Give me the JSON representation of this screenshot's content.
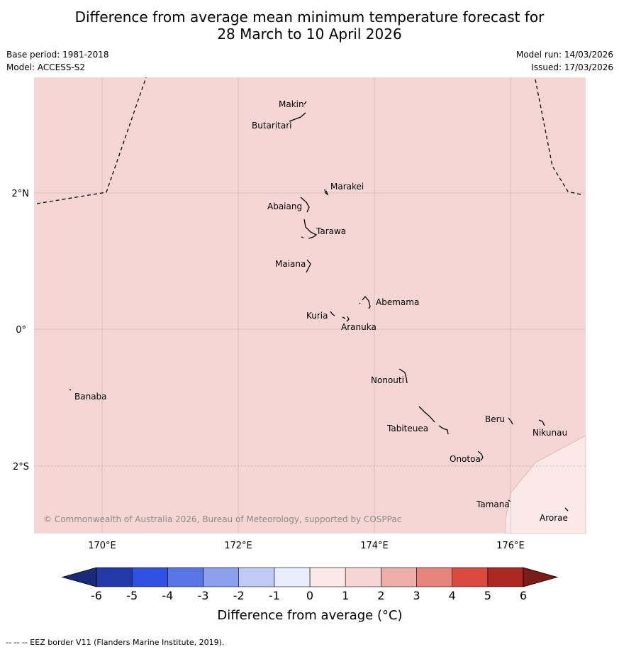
{
  "header": {
    "title_line1": "Difference from average mean minimum temperature forecast for",
    "title_line2": "28 March to 10 April 2026",
    "base_period": "Base period: 1981-2018",
    "model": "Model: ACCESS-S2",
    "model_run": "Model run: 14/03/2026",
    "issued": "Issued: 17/03/2026"
  },
  "map": {
    "lat_labels": [
      "2°N",
      "0°",
      "2°S"
    ],
    "lon_labels": [
      "170°E",
      "172°E",
      "174°E",
      "176°E"
    ],
    "background_color": "#f5d6d4",
    "light_region_color": "#fbe9e7",
    "copyright": "© Commonwealth of Australia 2026, Bureau of Meteorology, supported by COSPPac",
    "places": [
      {
        "name": "Makin"
      },
      {
        "name": "Butaritari"
      },
      {
        "name": "Marakei"
      },
      {
        "name": "Abaiang"
      },
      {
        "name": "Tarawa"
      },
      {
        "name": "Maiana"
      },
      {
        "name": "Abemama"
      },
      {
        "name": "Kuria"
      },
      {
        "name": "Aranuka"
      },
      {
        "name": "Nonouti"
      },
      {
        "name": "Banaba"
      },
      {
        "name": "Beru"
      },
      {
        "name": "Nikunau"
      },
      {
        "name": "Tabiteuea"
      },
      {
        "name": "Onotoa"
      },
      {
        "name": "Tamana"
      },
      {
        "name": "Arorae"
      }
    ]
  },
  "legend": {
    "tick_labels": [
      "-6",
      "-5",
      "-4",
      "-3",
      "-2",
      "-1",
      "0",
      "1",
      "2",
      "3",
      "4",
      "5",
      "6"
    ],
    "colors": [
      "#2439a8",
      "#3050e2",
      "#5a76e6",
      "#8a9fee",
      "#c1caf5",
      "#e8ecfb",
      "#fbe9e7",
      "#f5d6d4",
      "#eeafab",
      "#e7847b",
      "#db4a3f",
      "#ab2721"
    ],
    "under_color": "#1a2a7a",
    "over_color": "#7a1c17",
    "label": "Difference from average (°C)"
  },
  "footer": {
    "text": "--  --  -- EEZ border V11 (Flanders Marine Institute, 2019)."
  }
}
